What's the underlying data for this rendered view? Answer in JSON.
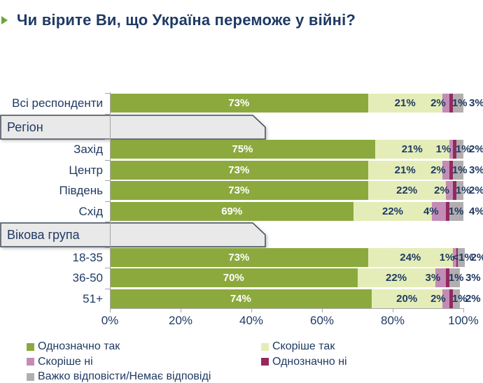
{
  "title": "Чи вірите Ви, що Україна переможе у війні?",
  "colors": {
    "title_text": "#1e3a64",
    "bullet_green": "#6fa33d",
    "axis_gray": "#a6a6a6",
    "tab_fill": "#e9e9e9",
    "tab_border": "#404b5a"
  },
  "chart_data": {
    "type": "bar",
    "stacked": true,
    "orientation": "horizontal",
    "title": "Чи вірите Ви, що Україна переможе у війні?",
    "xlim": [
      0,
      100
    ],
    "x_ticks": [
      "0%",
      "20%",
      "40%",
      "60%",
      "80%",
      "100%"
    ],
    "grid": false,
    "legend_position": "bottom",
    "series": [
      {
        "name": "Однозначно так",
        "color": "#8ca93e"
      },
      {
        "name": "Скоріше так",
        "color": "#e4edb8"
      },
      {
        "name": "Скоріше ні",
        "color": "#c38cb6"
      },
      {
        "name": "Однозначно ні",
        "color": "#94295f"
      },
      {
        "name": "Важко відповісти/Немає відповіді",
        "color": "#b2aeb0"
      }
    ],
    "groups": [
      {
        "header": null,
        "rows": [
          {
            "label": "Всі респонденти",
            "values": [
              73,
              21,
              2,
              1,
              3
            ],
            "value_labels": [
              "73%",
              "21%",
              "2%",
              "1%",
              "3%"
            ]
          }
        ]
      },
      {
        "header": "Регіон",
        "rows": [
          {
            "label": "Захід",
            "values": [
              75,
              21,
              1,
              1,
              2
            ],
            "value_labels": [
              "75%",
              "21%",
              "1%",
              "1%",
              "2%"
            ]
          },
          {
            "label": "Центр",
            "values": [
              73,
              21,
              2,
              1,
              3
            ],
            "value_labels": [
              "73%",
              "21%",
              "2%",
              "1%",
              "3%"
            ]
          },
          {
            "label": "Південь",
            "values": [
              73,
              22,
              2,
              1,
              2
            ],
            "value_labels": [
              "73%",
              "22%",
              "2%",
              "1%",
              "2%"
            ]
          },
          {
            "label": "Схід",
            "values": [
              69,
              22,
              4,
              1,
              4
            ],
            "value_labels": [
              "69%",
              "22%",
              "4%",
              "1%",
              "4%"
            ]
          }
        ]
      },
      {
        "header": "Вікова група",
        "rows": [
          {
            "label": "18-35",
            "values": [
              73,
              24,
              1,
              0.5,
              2
            ],
            "value_labels": [
              "73%",
              "24%",
              "1%",
              "<1%",
              "2%"
            ]
          },
          {
            "label": "36-50",
            "values": [
              70,
              22,
              3,
              1,
              3
            ],
            "value_labels": [
              "70%",
              "22%",
              "3%",
              "1%",
              "3%"
            ]
          },
          {
            "label": "51+",
            "values": [
              74,
              20,
              2,
              1,
              2
            ],
            "value_labels": [
              "74%",
              "20%",
              "2%",
              "1%",
              "2%"
            ]
          }
        ]
      }
    ]
  }
}
